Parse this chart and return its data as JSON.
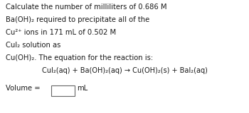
{
  "bg_color": "#ffffff",
  "text_color": "#1a1a1a",
  "line1": "Calculate the number of milliliters of 0.686 M",
  "line2": "Ba(OH)₂ required to precipitate all of the",
  "line3": "Cu²⁺ ions in 171 mL of 0.502 M",
  "line4": "CuI₂ solution as",
  "line5": "Cu(OH)₂. The equation for the reaction is:",
  "equation": "CuI₂(aq) + Ba(OH)₂(aq) → Cu(OH)₂(s) + BaI₂(aq)",
  "volume_label": "Volume = ",
  "volume_unit": "mL",
  "font_size_body": 7.2,
  "font_size_eq": 7.0,
  "font_family": "DejaVu Sans"
}
